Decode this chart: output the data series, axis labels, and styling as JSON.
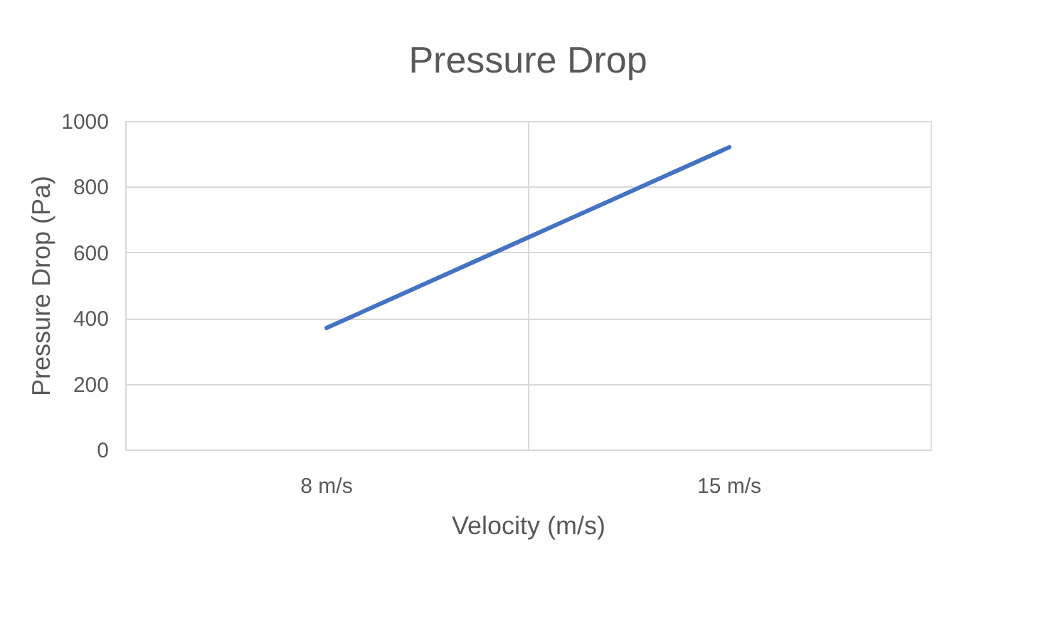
{
  "chart_data": {
    "type": "line",
    "title": "Pressure Drop",
    "xlabel": "Velocity (m/s)",
    "ylabel": "Pressure Drop (Pa)",
    "categories": [
      "8 m/s",
      "15 m/s"
    ],
    "series": [
      {
        "color": "#4472c4",
        "values": [
          370,
          920
        ]
      }
    ],
    "ylim": [
      0,
      1000
    ],
    "yticks": [
      0,
      200,
      400,
      600,
      800,
      1000
    ],
    "grid": true,
    "marker": "none",
    "line_style": "solid"
  }
}
